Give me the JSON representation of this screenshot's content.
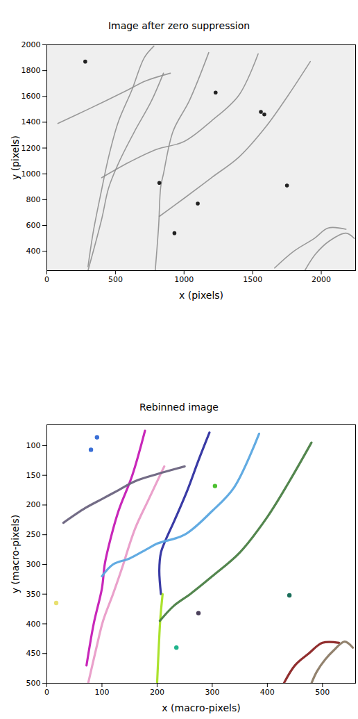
{
  "chart_data": [
    {
      "type": "line",
      "title": "Image after zero suppression",
      "xlabel": "x (pixels)",
      "ylabel": "y (pixels)",
      "xlim": [
        0,
        2250
      ],
      "ylim": [
        250,
        2000
      ],
      "xticks": [
        0,
        500,
        1000,
        1500,
        2000
      ],
      "yticks": [
        400,
        600,
        800,
        1000,
        1200,
        1400,
        1600,
        1800,
        2000
      ],
      "series": [
        {
          "type": "line",
          "color": "#8a8a8a",
          "x": [
            80,
            300,
            590,
            720,
            900
          ],
          "y": [
            1390,
            1500,
            1650,
            1720,
            1780
          ]
        },
        {
          "type": "line",
          "color": "#8a8a8a",
          "x": [
            300,
            340,
            400,
            450,
            520,
            620,
            710,
            780
          ],
          "y": [
            280,
            560,
            880,
            1130,
            1400,
            1650,
            1900,
            1990
          ]
        },
        {
          "type": "line",
          "color": "#8a8a8a",
          "x": [
            300,
            400,
            450,
            530,
            640,
            760,
            850
          ],
          "y": [
            250,
            650,
            890,
            1100,
            1330,
            1560,
            1780
          ]
        },
        {
          "type": "line",
          "color": "#8a8a8a",
          "x": [
            790,
            815,
            830,
            850,
            920,
            1040,
            1180
          ],
          "y": [
            250,
            600,
            900,
            1000,
            1330,
            1570,
            1940
          ]
        },
        {
          "type": "line",
          "color": "#8a8a8a",
          "x": [
            400,
            600,
            800,
            1000,
            1200,
            1400,
            1540
          ],
          "y": [
            970,
            1090,
            1190,
            1250,
            1410,
            1610,
            1930
          ]
        },
        {
          "type": "line",
          "color": "#8a8a8a",
          "x": [
            820,
            1000,
            1200,
            1400,
            1600,
            1760,
            1920
          ],
          "y": [
            670,
            810,
            970,
            1130,
            1370,
            1610,
            1870
          ]
        },
        {
          "type": "line",
          "color": "#8a8a8a",
          "x": [
            1660,
            1800,
            1950,
            2050,
            2180
          ],
          "y": [
            270,
            400,
            500,
            580,
            570
          ]
        },
        {
          "type": "line",
          "color": "#8a8a8a",
          "x": [
            1880,
            1960,
            2060,
            2180,
            2240
          ],
          "y": [
            250,
            380,
            480,
            540,
            500
          ]
        },
        {
          "type": "scatter",
          "color": "#222222",
          "x": [
            280,
            930,
            1100,
            820,
            1750,
            1230,
            1560,
            1585
          ],
          "y": [
            1870,
            540,
            770,
            930,
            910,
            1630,
            1480,
            1460
          ]
        }
      ]
    },
    {
      "type": "scatter",
      "title": "Rebinned image",
      "xlabel": "x (macro-pixels)",
      "ylabel": "y (macro-pixels)",
      "xlim": [
        0,
        560
      ],
      "ylim": [
        500,
        65
      ],
      "xticks": [
        0,
        100,
        200,
        300,
        400,
        500
      ],
      "yticks": [
        100,
        150,
        200,
        250,
        300,
        350,
        400,
        450,
        500
      ],
      "series": [
        {
          "type": "line",
          "color": "#c51bb5",
          "x": [
            72,
            85,
            100,
            105,
            112,
            130,
            155,
            178
          ],
          "y": [
            470,
            400,
            340,
            300,
            270,
            210,
            150,
            75
          ]
        },
        {
          "type": "line",
          "color": "#e99cc8",
          "x": [
            75,
            90,
            102,
            120,
            135,
            160,
            185,
            213
          ],
          "y": [
            500,
            440,
            395,
            350,
            310,
            240,
            190,
            135
          ]
        },
        {
          "type": "line",
          "color": "#6b6480",
          "x": [
            30,
            70,
            100,
            130,
            160,
            200,
            250
          ],
          "y": [
            230,
            205,
            190,
            175,
            160,
            148,
            135
          ]
        },
        {
          "type": "line",
          "color": "#2e2fa0",
          "x": [
            207,
            204,
            207,
            215,
            232,
            255,
            275,
            295
          ],
          "y": [
            350,
            310,
            280,
            260,
            225,
            175,
            125,
            78
          ]
        },
        {
          "type": "line",
          "color": "#a6e022",
          "x": [
            200,
            203,
            206,
            210
          ],
          "y": [
            500,
            440,
            390,
            350
          ]
        },
        {
          "type": "line",
          "color": "#5aa6e0",
          "x": [
            100,
            120,
            150,
            180,
            200,
            250,
            300,
            340,
            385
          ],
          "y": [
            320,
            300,
            290,
            275,
            265,
            250,
            210,
            170,
            80
          ]
        },
        {
          "type": "line",
          "color": "#4a7f45",
          "x": [
            205,
            230,
            260,
            300,
            350,
            400,
            440,
            480
          ],
          "y": [
            395,
            370,
            350,
            320,
            280,
            220,
            160,
            95
          ]
        },
        {
          "type": "line",
          "color": "#8b2323",
          "x": [
            430,
            450,
            475,
            500,
            530
          ],
          "y": [
            500,
            470,
            450,
            432,
            432
          ]
        },
        {
          "type": "line",
          "color": "#8c7b66",
          "x": [
            480,
            490,
            505,
            520,
            540,
            555
          ],
          "y": [
            500,
            480,
            460,
            445,
            430,
            440
          ]
        },
        {
          "type": "scatter",
          "color": "#3a6fd6",
          "x": [
            80,
            91
          ],
          "y": [
            107,
            86
          ]
        },
        {
          "type": "scatter",
          "color": "#4cc030",
          "x": [
            305
          ],
          "y": [
            168
          ]
        },
        {
          "type": "scatter",
          "color": "#1a6e5a",
          "x": [
            440
          ],
          "y": [
            352
          ]
        },
        {
          "type": "scatter",
          "color": "#4a3f5a",
          "x": [
            275
          ],
          "y": [
            382
          ]
        },
        {
          "type": "scatter",
          "color": "#20b48c",
          "x": [
            235
          ],
          "y": [
            440
          ]
        },
        {
          "type": "scatter",
          "color": "#e8e070",
          "x": [
            17
          ],
          "y": [
            365
          ]
        }
      ]
    }
  ]
}
